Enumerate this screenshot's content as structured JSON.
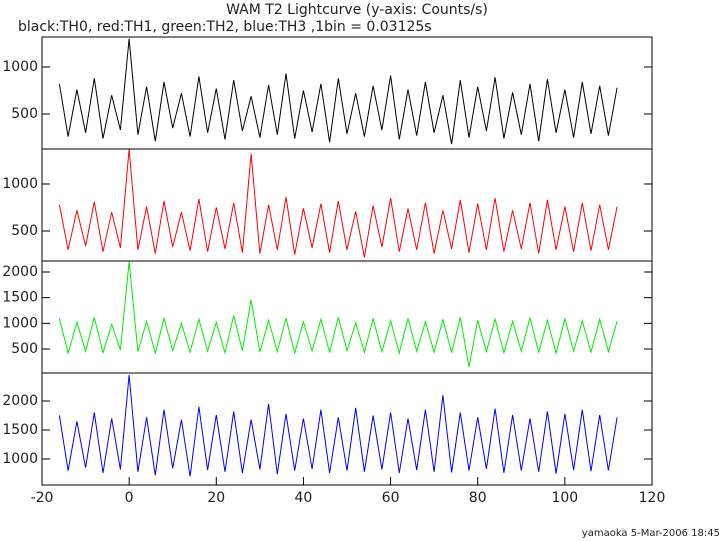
{
  "chart_data": [
    {
      "type": "line",
      "title": "WAM T2 Lightcurve (y-axis: Counts/s)",
      "subtitle": "black:TH0, red:TH1, green:TH2, blue:TH3 ,1bin = 0.03125s",
      "annotation": "yamaoka  5-Mar-2006 18:45",
      "x": [
        -16,
        -14,
        -12,
        -10,
        -8,
        -6,
        -4,
        -2,
        0,
        2,
        4,
        6,
        8,
        10,
        12,
        14,
        16,
        18,
        20,
        22,
        24,
        26,
        28,
        30,
        32,
        34,
        36,
        38,
        40,
        42,
        44,
        46,
        48,
        50,
        52,
        54,
        56,
        58,
        60,
        62,
        64,
        66,
        68,
        70,
        72,
        74,
        76,
        78,
        80,
        82,
        84,
        86,
        88,
        90,
        92,
        94,
        96,
        98,
        100,
        102,
        104,
        106,
        108,
        110,
        112
      ],
      "series": [
        {
          "name": "TH0",
          "color": "#000000",
          "values": [
            820,
            260,
            760,
            300,
            880,
            240,
            700,
            330,
            1300,
            280,
            790,
            210,
            840,
            350,
            720,
            260,
            900,
            300,
            770,
            230,
            860,
            320,
            690,
            250,
            810,
            280,
            930,
            240,
            750,
            310,
            820,
            200,
            880,
            290,
            720,
            260,
            800,
            330,
            910,
            230,
            760,
            270,
            840,
            300,
            700,
            180,
            860,
            250,
            790,
            320,
            890,
            240,
            730,
            280,
            820,
            210,
            870,
            300,
            760,
            250,
            840,
            290,
            800,
            270,
            780
          ]
        }
      ],
      "xlim": [
        -20,
        120
      ],
      "ylim": [
        128,
        1319
      ],
      "yticks": [
        500,
        1000
      ]
    },
    {
      "type": "line",
      "x": [
        -16,
        -14,
        -12,
        -10,
        -8,
        -6,
        -4,
        -2,
        0,
        2,
        4,
        6,
        8,
        10,
        12,
        14,
        16,
        18,
        20,
        22,
        24,
        26,
        28,
        30,
        32,
        34,
        36,
        38,
        40,
        42,
        44,
        46,
        48,
        50,
        52,
        54,
        56,
        58,
        60,
        62,
        64,
        66,
        68,
        70,
        72,
        74,
        76,
        78,
        80,
        82,
        84,
        86,
        88,
        90,
        92,
        94,
        96,
        98,
        100,
        102,
        104,
        106,
        108,
        110,
        112
      ],
      "series": [
        {
          "name": "TH1",
          "color": "#ff0000",
          "values": [
            780,
            300,
            720,
            340,
            810,
            280,
            700,
            320,
            1370,
            300,
            760,
            260,
            820,
            330,
            700,
            290,
            840,
            280,
            750,
            310,
            800,
            270,
            1320,
            260,
            780,
            300,
            860,
            250,
            740,
            320,
            790,
            270,
            820,
            300,
            710,
            220,
            770,
            330,
            850,
            280,
            740,
            300,
            800,
            260,
            720,
            310,
            830,
            270,
            790,
            300,
            850,
            280,
            720,
            310,
            800,
            260,
            830,
            300,
            760,
            280,
            800,
            290,
            780,
            300,
            760
          ]
        }
      ],
      "xlim": [
        -20,
        120
      ],
      "ylim": [
        181,
        1372
      ],
      "yticks": [
        500,
        1000
      ]
    },
    {
      "type": "line",
      "x": [
        -16,
        -14,
        -12,
        -10,
        -8,
        -6,
        -4,
        -2,
        0,
        2,
        4,
        6,
        8,
        10,
        12,
        14,
        16,
        18,
        20,
        22,
        24,
        26,
        28,
        30,
        32,
        34,
        36,
        38,
        40,
        42,
        44,
        46,
        48,
        50,
        52,
        54,
        56,
        58,
        60,
        62,
        64,
        66,
        68,
        70,
        72,
        74,
        76,
        78,
        80,
        82,
        84,
        86,
        88,
        90,
        92,
        94,
        96,
        98,
        100,
        102,
        104,
        106,
        108,
        110,
        112
      ],
      "series": [
        {
          "name": "TH2",
          "color": "#00ee00",
          "values": [
            1100,
            420,
            1020,
            460,
            1120,
            430,
            980,
            480,
            2200,
            450,
            1040,
            420,
            1100,
            470,
            1000,
            440,
            1080,
            460,
            1020,
            430,
            1150,
            470,
            1460,
            440,
            1060,
            450,
            1100,
            420,
            1030,
            460,
            1080,
            430,
            1120,
            470,
            1010,
            440,
            1090,
            450,
            1050,
            420,
            1100,
            460,
            1030,
            440,
            1070,
            430,
            1120,
            150,
            1060,
            450,
            1080,
            430,
            1040,
            460,
            1110,
            440,
            1060,
            420,
            1090,
            460,
            1050,
            440,
            1080,
            450,
            1040
          ]
        }
      ],
      "xlim": [
        -20,
        120
      ],
      "ylim": [
        33,
        2214
      ],
      "yticks": [
        500,
        1000,
        1500,
        2000
      ]
    },
    {
      "type": "line",
      "x": [
        -16,
        -14,
        -12,
        -10,
        -8,
        -6,
        -4,
        -2,
        0,
        2,
        4,
        6,
        8,
        10,
        12,
        14,
        16,
        18,
        20,
        22,
        24,
        26,
        28,
        30,
        32,
        34,
        36,
        38,
        40,
        42,
        44,
        46,
        48,
        50,
        52,
        54,
        56,
        58,
        60,
        62,
        64,
        66,
        68,
        70,
        72,
        74,
        76,
        78,
        80,
        82,
        84,
        86,
        88,
        90,
        92,
        94,
        96,
        98,
        100,
        102,
        104,
        106,
        108,
        110,
        112
      ],
      "series": [
        {
          "name": "TH3",
          "color": "#0000ff",
          "values": [
            1750,
            800,
            1650,
            850,
            1800,
            760,
            1700,
            820,
            2450,
            780,
            1720,
            720,
            1850,
            840,
            1680,
            700,
            1900,
            810,
            1760,
            780,
            1820,
            760,
            1680,
            820,
            1950,
            740,
            1780,
            800,
            1700,
            830,
            1850,
            760,
            1720,
            800,
            1880,
            780,
            1750,
            820,
            1800,
            760,
            1700,
            810,
            1850,
            780,
            2100,
            770,
            1800,
            800,
            1720,
            830,
            1870,
            760,
            1760,
            800,
            1700,
            780,
            1820,
            750,
            1780,
            810,
            1850,
            790,
            1760,
            800,
            1720
          ]
        }
      ],
      "xlim": [
        -20,
        120
      ],
      "ylim": [
        552,
        2483
      ],
      "yticks": [
        1000,
        1500,
        2000
      ],
      "xticks": [
        -20,
        0,
        20,
        40,
        60,
        80,
        100,
        120
      ]
    }
  ]
}
